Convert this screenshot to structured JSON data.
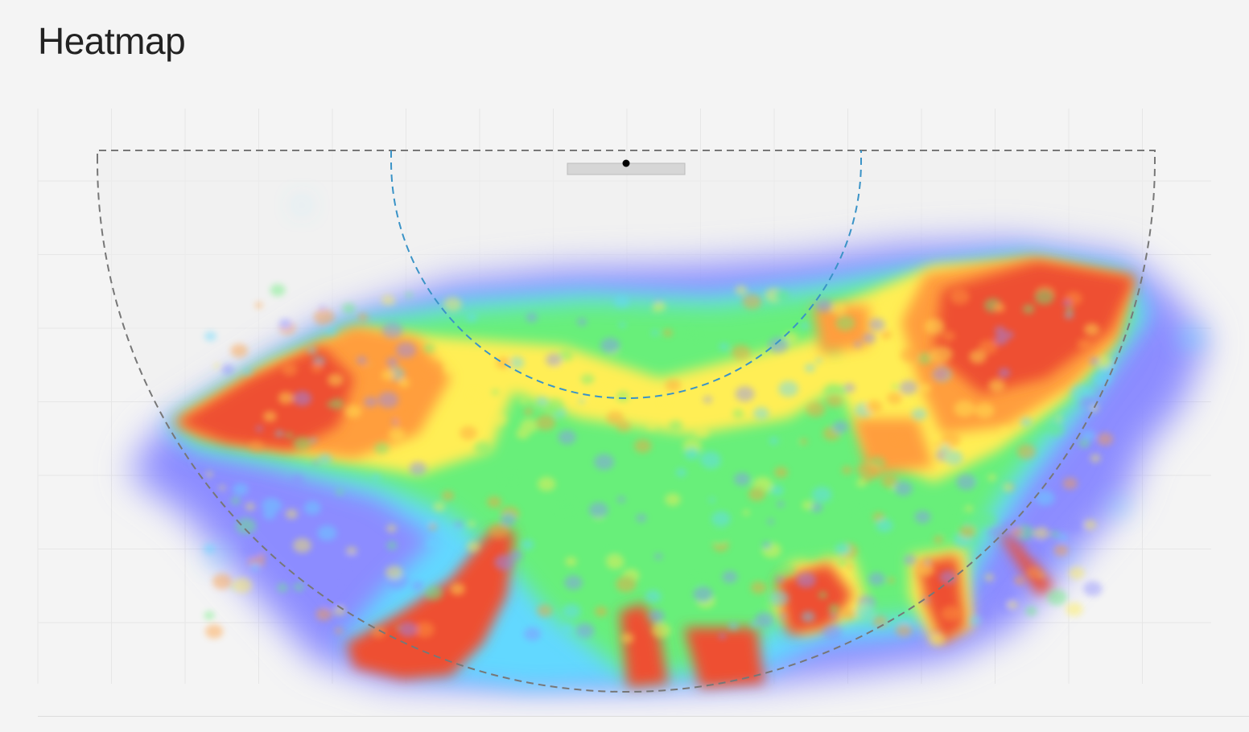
{
  "page": {
    "title": "Heatmap"
  },
  "chart_data": {
    "type": "heatmap",
    "title": "",
    "xlabel": "",
    "ylabel": "",
    "grid": true,
    "legend": "none",
    "colorscale": [
      "#8c8cff",
      "#62d8ff",
      "#68ef7a",
      "#ffee55",
      "#ff9e3c",
      "#ee5030"
    ],
    "colors": {
      "background": "#f4f4f4",
      "grid": "#e6e6e6",
      "outer_boundary": "#777777",
      "inner_boundary": "#3a93c7",
      "marker_box": "#d6d6d6",
      "marker_dot": "#000000"
    },
    "hotspots": [
      {
        "name": "left-wing",
        "intensity": 1.0
      },
      {
        "name": "right-wing",
        "intensity": 1.0
      },
      {
        "name": "center-band",
        "intensity": 0.55
      },
      {
        "name": "inner-arc",
        "intensity": 0.7
      },
      {
        "name": "lower-left-spike",
        "intensity": 1.0
      },
      {
        "name": "lower-center-spikes",
        "intensity": 0.95
      },
      {
        "name": "lower-right-spot",
        "intensity": 0.9
      },
      {
        "name": "far-right-spike",
        "intensity": 0.85
      }
    ]
  }
}
